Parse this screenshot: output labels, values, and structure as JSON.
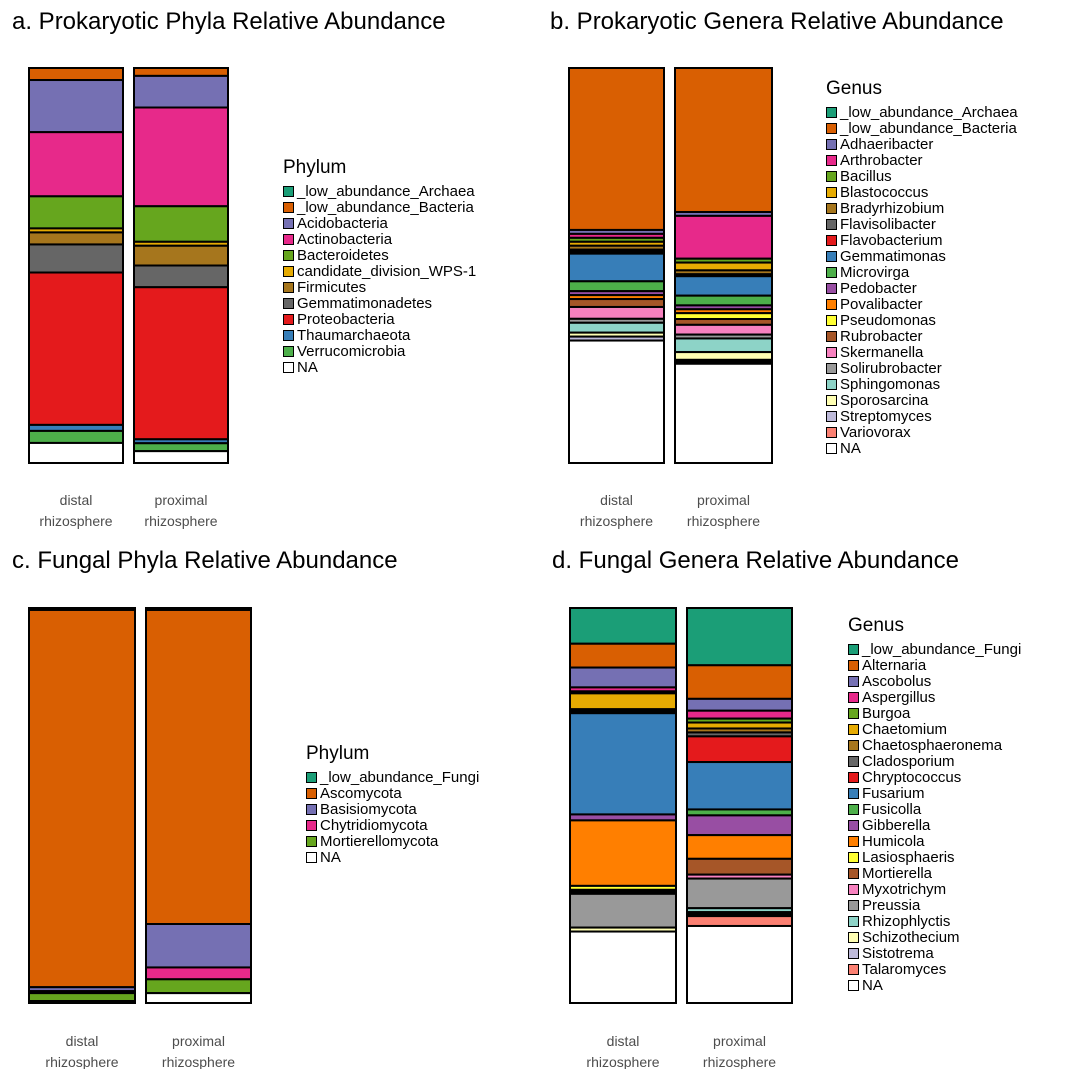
{
  "colors": {
    "low_Archaea": "#1b9e77",
    "low_Bacteria": "#d95f02",
    "low_Fungi": "#1b9e77",
    "Acidobacteria": "#7570b3",
    "Actinobacteria": "#e7298a",
    "Bacteroidetes": "#66a61e",
    "WPS1": "#e6ab02",
    "Firmicutes": "#a6761d",
    "Gemmatimonadetes": "#666666",
    "Proteobacteria": "#e41a1c",
    "Thaumarchaeota": "#377eb8",
    "Verrucomicrobia": "#4daf4a",
    "NA": "#ffffff",
    "Ascomycota": "#d95f02",
    "Basisiomycota": "#7570b3",
    "Chytridiomycota": "#e7298a",
    "Mortierellomycota": "#66a61e",
    "Adhaeribacter": "#7570b3",
    "Arthrobacter": "#e7298a",
    "Bacillus": "#66a61e",
    "Blastococcus": "#e6ab02",
    "Bradyrhizobium": "#a6761d",
    "Flavisolibacter": "#666666",
    "Flavobacterium": "#e41a1c",
    "Gemmatimonas": "#377eb8",
    "Microvirga": "#4daf4a",
    "Pedobacter": "#984ea3",
    "Povalibacter": "#ff7f00",
    "Pseudomonas": "#ffff33",
    "Rubrobacter": "#a65628",
    "Skermanella": "#f781bf",
    "Solirubrobacter": "#999999",
    "Sphingomonas": "#8dd3c7",
    "Sporosarcina": "#ffffb3",
    "Streptomyces": "#bebada",
    "Variovorax": "#fb8072",
    "Alternaria": "#d95f02",
    "Ascobolus": "#7570b3",
    "Aspergillus": "#e7298a",
    "Burgoa": "#66a61e",
    "Chaetomium": "#e6ab02",
    "Chaetosphaeronema": "#a6761d",
    "Cladosporium": "#666666",
    "Chryptococcus": "#e41a1c",
    "Fusarium": "#377eb8",
    "Fusicolla": "#4daf4a",
    "Gibberella": "#984ea3",
    "Humicola": "#ff7f00",
    "Lasiosphaeris": "#ffff33",
    "Mortierella": "#a65628",
    "Myxotrichym": "#f781bf",
    "Preussia": "#999999",
    "Rhizophlyctis": "#8dd3c7",
    "Schizothecium": "#ffffb3",
    "Sistotrema": "#bebada",
    "Talaromyces": "#fb8072"
  },
  "chart_data": [
    {
      "id": "a",
      "type": "bar",
      "stacked": true,
      "title": "a. Prokaryotic Phyla Relative Abundance",
      "categories": [
        "distal\nrhizosphere",
        "proximal\nrhizosphere"
      ],
      "ylim": [
        0,
        1
      ],
      "legend_title": "Phylum",
      "legend_position": "right",
      "series": [
        {
          "name": "_low_abundance_Archaea",
          "color_key": "low_Archaea",
          "values": [
            0,
            0
          ]
        },
        {
          "name": "_low_abundance_Bacteria",
          "color_key": "low_Bacteria",
          "values": [
            0.03,
            0.02
          ]
        },
        {
          "name": "Acidobacteria",
          "color_key": "Acidobacteria",
          "values": [
            0.13,
            0.08
          ]
        },
        {
          "name": "Actinobacteria",
          "color_key": "Actinobacteria",
          "values": [
            0.16,
            0.25
          ]
        },
        {
          "name": "Bacteroidetes",
          "color_key": "Bacteroidetes",
          "values": [
            0.08,
            0.09
          ]
        },
        {
          "name": "candidate_division_WPS-1",
          "color_key": "WPS1",
          "values": [
            0.01,
            0.01
          ]
        },
        {
          "name": "Firmicutes",
          "color_key": "Firmicutes",
          "values": [
            0.03,
            0.05
          ]
        },
        {
          "name": "Gemmatimonadetes",
          "color_key": "Gemmatimonadetes",
          "values": [
            0.07,
            0.055
          ]
        },
        {
          "name": "Proteobacteria",
          "color_key": "Proteobacteria",
          "values": [
            0.38,
            0.385
          ]
        },
        {
          "name": "Thaumarchaeota",
          "color_key": "Thaumarchaeota",
          "values": [
            0.015,
            0.01
          ]
        },
        {
          "name": "Verrucomicrobia",
          "color_key": "Verrucomicrobia",
          "values": [
            0.03,
            0.02
          ]
        },
        {
          "name": "NA",
          "color_key": "NA",
          "values": [
            0.05,
            0.03
          ]
        }
      ]
    },
    {
      "id": "b",
      "type": "bar",
      "stacked": true,
      "title": "b. Prokaryotic Genera Relative Abundance",
      "categories": [
        "distal\nrhizosphere",
        "proximal\nrhizosphere"
      ],
      "ylim": [
        0,
        1
      ],
      "legend_title": "Genus",
      "legend_position": "right",
      "series": [
        {
          "name": "_low_abundance_Archaea",
          "color_key": "low_Archaea",
          "values": [
            0,
            0
          ]
        },
        {
          "name": "_low_abundance_Bacteria",
          "color_key": "low_Bacteria",
          "values": [
            0.41,
            0.37
          ]
        },
        {
          "name": "Adhaeribacter",
          "color_key": "Adhaeribacter",
          "values": [
            0.01,
            0.01
          ]
        },
        {
          "name": "Arthrobacter",
          "color_key": "Arthrobacter",
          "values": [
            0.01,
            0.11
          ]
        },
        {
          "name": "Bacillus",
          "color_key": "Bacillus",
          "values": [
            0.01,
            0.01
          ]
        },
        {
          "name": "Blastococcus",
          "color_key": "Blastococcus",
          "values": [
            0.01,
            0.02
          ]
        },
        {
          "name": "Bradyrhizobium",
          "color_key": "Bradyrhizobium",
          "values": [
            0.01,
            0.01
          ]
        },
        {
          "name": "Flavisolibacter",
          "color_key": "Flavisolibacter",
          "values": [
            0.005,
            0.005
          ]
        },
        {
          "name": "Flavobacterium",
          "color_key": "Flavobacterium",
          "values": [
            0.005,
            0
          ]
        },
        {
          "name": "Gemmatimonas",
          "color_key": "Gemmatimonas",
          "values": [
            0.07,
            0.05
          ]
        },
        {
          "name": "Microvirga",
          "color_key": "Microvirga",
          "values": [
            0.025,
            0.025
          ]
        },
        {
          "name": "Pedobacter",
          "color_key": "Pedobacter",
          "values": [
            0.01,
            0.01
          ]
        },
        {
          "name": "Povalibacter",
          "color_key": "Povalibacter",
          "values": [
            0.01,
            0.01
          ]
        },
        {
          "name": "Pseudomonas",
          "color_key": "Pseudomonas",
          "values": [
            0,
            0.015
          ]
        },
        {
          "name": "Rubrobacter",
          "color_key": "Rubrobacter",
          "values": [
            0.02,
            0.015
          ]
        },
        {
          "name": "Skermanella",
          "color_key": "Skermanella",
          "values": [
            0.03,
            0.025
          ]
        },
        {
          "name": "Solirubrobacter",
          "color_key": "Solirubrobacter",
          "values": [
            0.01,
            0.01
          ]
        },
        {
          "name": "Sphingomonas",
          "color_key": "Sphingomonas",
          "values": [
            0.025,
            0.035
          ]
        },
        {
          "name": "Sporosarcina",
          "color_key": "Sporosarcina",
          "values": [
            0.01,
            0.02
          ]
        },
        {
          "name": "Streptomyces",
          "color_key": "Streptomyces",
          "values": [
            0.01,
            0.005
          ]
        },
        {
          "name": "Variovorax",
          "color_key": "Variovorax",
          "values": [
            0,
            0.005
          ]
        },
        {
          "name": "NA",
          "color_key": "NA",
          "values": [
            0.31,
            0.255
          ]
        }
      ]
    },
    {
      "id": "c",
      "type": "bar",
      "stacked": true,
      "title": "c. Fungal Phyla Relative Abundance",
      "categories": [
        "distal\nrhizosphere",
        "proximal\nrhizosphere"
      ],
      "ylim": [
        0,
        1
      ],
      "legend_title": "Phylum",
      "legend_position": "right",
      "series": [
        {
          "name": "_low_abundance_Fungi",
          "color_key": "low_Fungi",
          "values": [
            0.005,
            0.005
          ]
        },
        {
          "name": "Ascomycota",
          "color_key": "Ascomycota",
          "values": [
            0.955,
            0.795
          ]
        },
        {
          "name": "Basisiomycota",
          "color_key": "Basisiomycota",
          "values": [
            0.01,
            0.11
          ]
        },
        {
          "name": "Chytridiomycota",
          "color_key": "Chytridiomycota",
          "values": [
            0.005,
            0.03
          ]
        },
        {
          "name": "Mortierellomycota",
          "color_key": "Mortierellomycota",
          "values": [
            0.02,
            0.035
          ]
        },
        {
          "name": "NA",
          "color_key": "NA",
          "values": [
            0.005,
            0.025
          ]
        }
      ]
    },
    {
      "id": "d",
      "type": "bar",
      "stacked": true,
      "title": "d. Fungal Genera Relative Abundance",
      "categories": [
        "distal\nrhizosphere",
        "proximal\nrhizosphere"
      ],
      "ylim": [
        0,
        1
      ],
      "legend_title": "Genus",
      "legend_position": "right",
      "series": [
        {
          "name": "_low_abundance_Fungi",
          "color_key": "low_Fungi",
          "values": [
            0.09,
            0.145
          ]
        },
        {
          "name": "Alternaria",
          "color_key": "Alternaria",
          "values": [
            0.06,
            0.085
          ]
        },
        {
          "name": "Ascobolus",
          "color_key": "Ascobolus",
          "values": [
            0.05,
            0.03
          ]
        },
        {
          "name": "Aspergillus",
          "color_key": "Aspergillus",
          "values": [
            0.01,
            0.02
          ]
        },
        {
          "name": "Burgoa",
          "color_key": "Burgoa",
          "values": [
            0.005,
            0.01
          ]
        },
        {
          "name": "Chaetomium",
          "color_key": "Chaetomium",
          "values": [
            0.04,
            0.015
          ]
        },
        {
          "name": "Chaetosphaeronema",
          "color_key": "Chaetosphaeronema",
          "values": [
            0.005,
            0.01
          ]
        },
        {
          "name": "Cladosporium",
          "color_key": "Cladosporium",
          "values": [
            0.005,
            0.01
          ]
        },
        {
          "name": "Chryptococcus",
          "color_key": "Chryptococcus",
          "values": [
            0,
            0.065
          ]
        },
        {
          "name": "Fusarium",
          "color_key": "Fusarium",
          "values": [
            0.255,
            0.12
          ]
        },
        {
          "name": "Fusicolla",
          "color_key": "Fusicolla",
          "values": [
            0,
            0.015
          ]
        },
        {
          "name": "Gibberella",
          "color_key": "Gibberella",
          "values": [
            0.015,
            0.05
          ]
        },
        {
          "name": "Humicola",
          "color_key": "Humicola",
          "values": [
            0.165,
            0.06
          ]
        },
        {
          "name": "Lasiosphaeris",
          "color_key": "Lasiosphaeris",
          "values": [
            0.01,
            0
          ]
        },
        {
          "name": "Mortierella",
          "color_key": "Mortierella",
          "values": [
            0.005,
            0.04
          ]
        },
        {
          "name": "Myxotrichym",
          "color_key": "Myxotrichym",
          "values": [
            0.005,
            0.01
          ]
        },
        {
          "name": "Preussia",
          "color_key": "Preussia",
          "values": [
            0.085,
            0.075
          ]
        },
        {
          "name": "Rhizophlyctis",
          "color_key": "Rhizophlyctis",
          "values": [
            0,
            0.01
          ]
        },
        {
          "name": "Schizothecium",
          "color_key": "Schizothecium",
          "values": [
            0.01,
            0.005
          ]
        },
        {
          "name": "Sistotrema",
          "color_key": "Sistotrema",
          "values": [
            0,
            0.005
          ]
        },
        {
          "name": "Talaromyces",
          "color_key": "Talaromyces",
          "values": [
            0,
            0.025
          ]
        },
        {
          "name": "NA",
          "color_key": "NA",
          "values": [
            0.18,
            0.195
          ]
        }
      ]
    }
  ]
}
